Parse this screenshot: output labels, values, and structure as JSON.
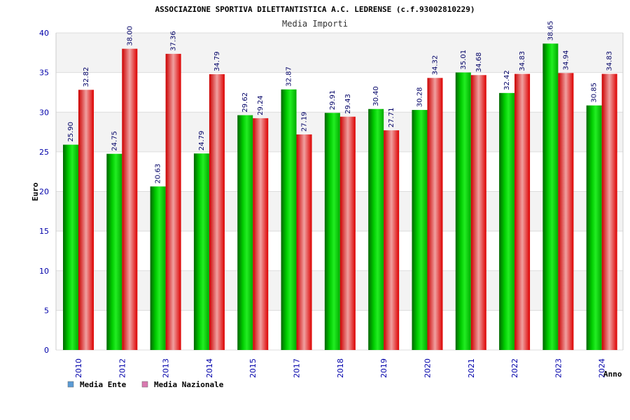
{
  "chart_data": {
    "type": "bar",
    "title": "ASSOCIAZIONE SPORTIVA DILETTANTISTICA A.C. LEDRENSE (c.f.93002810229)",
    "subtitle": "Media Importi",
    "xlabel": "Anno",
    "ylabel": "Euro",
    "ylim": [
      0,
      40
    ],
    "yticks": [
      0,
      5,
      10,
      15,
      20,
      25,
      30,
      35,
      40
    ],
    "grid": true,
    "legend_position": "bottom-left",
    "categories": [
      "2010",
      "2012",
      "2013",
      "2014",
      "2015",
      "2017",
      "2018",
      "2019",
      "2020",
      "2021",
      "2022",
      "2023",
      "2024"
    ],
    "series": [
      {
        "name": "Media Ente",
        "legend_color": "#5b9bd5",
        "bar_color": "#00cc00",
        "values": [
          25.9,
          24.75,
          20.63,
          24.79,
          29.62,
          32.87,
          29.91,
          30.4,
          30.28,
          35.01,
          32.42,
          38.65,
          30.85
        ],
        "labels": [
          "25.90",
          "24.75",
          "20.63",
          "24.79",
          "29.62",
          "32.87",
          "29.91",
          "30.40",
          "30.28",
          "35.01",
          "32.42",
          "38.65",
          "30.85"
        ]
      },
      {
        "name": "Media Nazionale",
        "legend_color": "#d97ab0",
        "bar_color": "#ee2222",
        "values": [
          32.82,
          38.0,
          37.36,
          34.79,
          29.24,
          27.19,
          29.43,
          27.71,
          34.32,
          34.68,
          34.83,
          34.94,
          34.83
        ],
        "labels": [
          "32.82",
          "38.00",
          "37.36",
          "34.79",
          "29.24",
          "27.19",
          "29.43",
          "27.71",
          "34.32",
          "34.68",
          "34.83",
          "34.94",
          "34.83"
        ]
      }
    ]
  }
}
